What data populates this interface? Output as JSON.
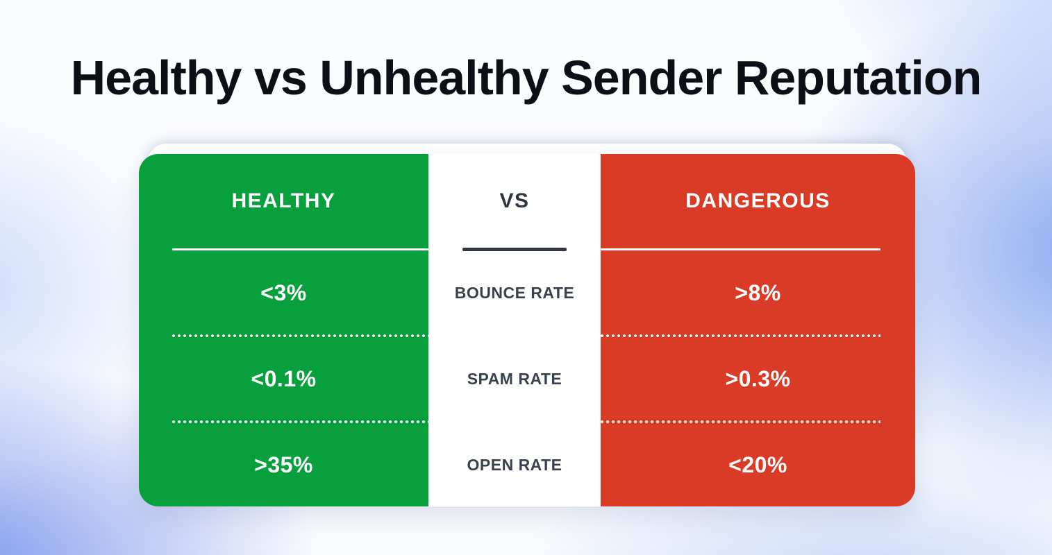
{
  "title": "Healthy vs Unhealthy Sender Reputation",
  "colors": {
    "healthy_green": "#07a03c",
    "dangerous_red": "#d93b26",
    "center_bg": "#ffffff",
    "dark_text": "#2e3540",
    "title_text": "#0c0f15",
    "background_blue": "#7e9bee"
  },
  "table": {
    "columns": [
      {
        "id": "healthy",
        "header": "HEALTHY",
        "values": [
          "<3%",
          "<0.1%",
          ">35%"
        ]
      },
      {
        "id": "vs",
        "header": "VS",
        "labels": [
          "BOUNCE RATE",
          "SPAM RATE",
          "OPEN RATE"
        ]
      },
      {
        "id": "dangerous",
        "header": "DANGEROUS",
        "values": [
          ">8%",
          ">0.3%",
          "<20%"
        ]
      }
    ]
  },
  "chart_data": {
    "type": "table",
    "title": "Healthy vs Unhealthy Sender Reputation",
    "columns": [
      "HEALTHY",
      "VS",
      "DANGEROUS"
    ],
    "rows": [
      {
        "metric": "BOUNCE RATE",
        "healthy": "<3%",
        "dangerous": ">8%"
      },
      {
        "metric": "SPAM RATE",
        "healthy": "<0.1%",
        "dangerous": ">0.3%"
      },
      {
        "metric": "OPEN RATE",
        "healthy": ">35%",
        "dangerous": "<20%"
      }
    ],
    "legend_position": "none",
    "grid": false
  }
}
